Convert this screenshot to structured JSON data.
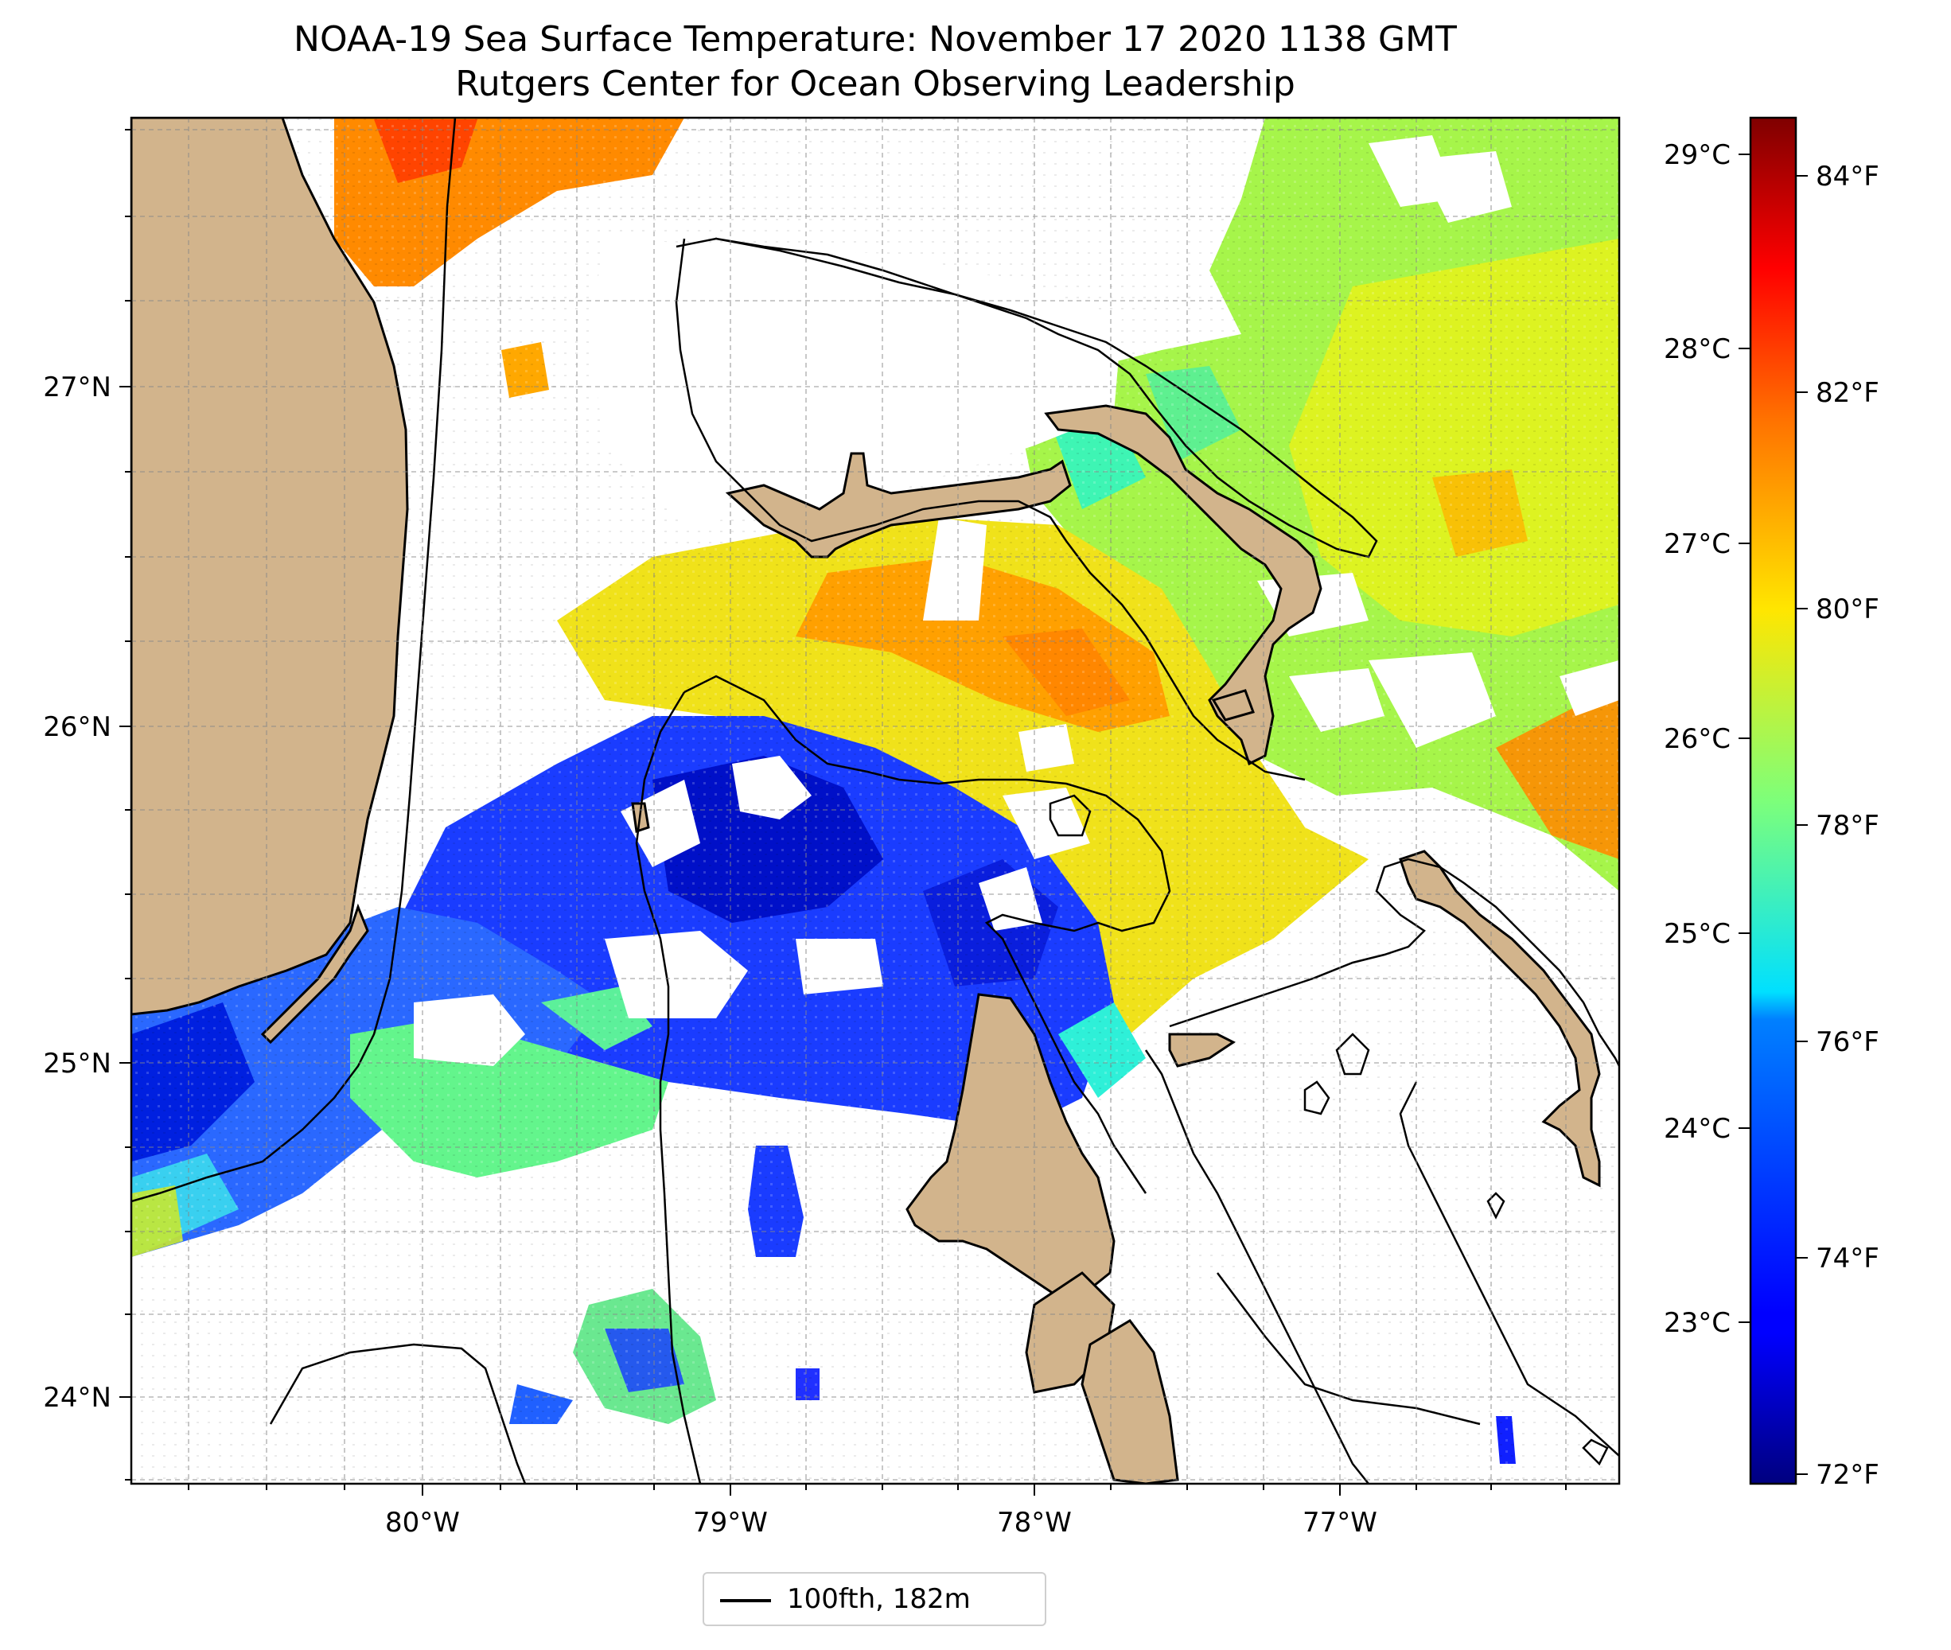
{
  "title": "NOAA-19 Sea Surface Temperature: November 17 2020 1138 GMT",
  "subtitle": "Rutgers Center for Ocean Observing Leadership",
  "map": {
    "lon_range": [
      -80.96,
      -76.09
    ],
    "lat_range": [
      23.74,
      27.79
    ],
    "lon_ticks": [
      {
        "value": -80,
        "label": "80°W"
      },
      {
        "value": -79,
        "label": "79°W"
      },
      {
        "value": -78,
        "label": "78°W"
      },
      {
        "value": -77,
        "label": "77°W"
      }
    ],
    "lat_ticks": [
      {
        "value": 24,
        "label": "24°N"
      },
      {
        "value": 25,
        "label": "25°N"
      },
      {
        "value": 26,
        "label": "26°N"
      },
      {
        "value": 27,
        "label": "27°N"
      }
    ],
    "gridlines": true,
    "land_color": "#d2b48c",
    "contour_color": "#000000"
  },
  "colorbar": {
    "colormap": "jet",
    "celsius_range": [
      22.2,
      29.2
    ],
    "celsius_ticks": [
      {
        "value": 23,
        "label": "23°C"
      },
      {
        "value": 24,
        "label": "24°C"
      },
      {
        "value": 25,
        "label": "25°C"
      },
      {
        "value": 26,
        "label": "26°C"
      },
      {
        "value": 27,
        "label": "27°C"
      },
      {
        "value": 28,
        "label": "28°C"
      },
      {
        "value": 29,
        "label": "29°C"
      }
    ],
    "fahrenheit_ticks": [
      {
        "value": 72,
        "label": "72°F"
      },
      {
        "value": 74,
        "label": "74°F"
      },
      {
        "value": 76,
        "label": "76°F"
      },
      {
        "value": 78,
        "label": "78°F"
      },
      {
        "value": 80,
        "label": "80°F"
      },
      {
        "value": 82,
        "label": "82°F"
      },
      {
        "value": 84,
        "label": "84°F"
      }
    ]
  },
  "legend": {
    "label": "100fth, 182m",
    "line_color": "#000000"
  }
}
